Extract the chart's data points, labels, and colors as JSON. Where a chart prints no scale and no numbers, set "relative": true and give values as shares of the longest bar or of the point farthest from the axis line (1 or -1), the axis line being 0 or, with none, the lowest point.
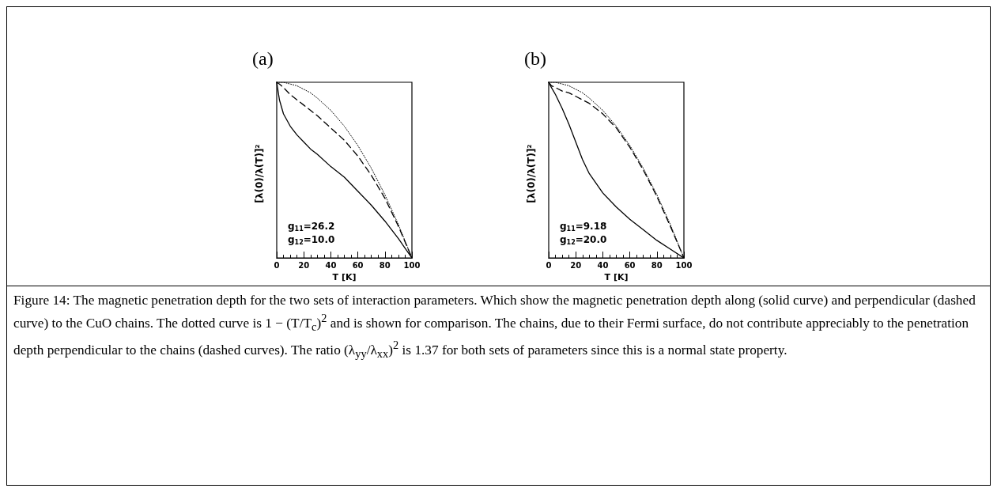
{
  "chart_data": [
    {
      "type": "line",
      "title": "(a)",
      "xlabel": "T [K]",
      "ylabel": "[λ(0)/λ(T)]²",
      "relative": true,
      "xlim": [
        0,
        100
      ],
      "xticks": [
        0,
        20,
        40,
        60,
        80,
        100
      ],
      "marker": "none",
      "grid": false,
      "x": [
        0,
        2,
        5,
        10,
        15,
        20,
        25,
        30,
        40,
        50,
        60,
        70,
        80,
        90,
        100
      ],
      "series": [
        {
          "color": "#000000",
          "line_style": "solid",
          "values": [
            1,
            0.9,
            0.82,
            0.75,
            0.7,
            0.66,
            0.62,
            0.59,
            0.52,
            0.46,
            0.38,
            0.3,
            0.21,
            0.11,
            0
          ]
        },
        {
          "color": "#000000",
          "line_style": "dashed",
          "values": [
            1,
            0.99,
            0.97,
            0.93,
            0.9,
            0.87,
            0.84,
            0.81,
            0.74,
            0.67,
            0.58,
            0.47,
            0.34,
            0.18,
            0
          ]
        },
        {
          "color": "#000000",
          "line_style": "dotted",
          "values": [
            1,
            1,
            1,
            0.99,
            0.98,
            0.96,
            0.94,
            0.91,
            0.84,
            0.75,
            0.64,
            0.51,
            0.36,
            0.19,
            0
          ]
        }
      ],
      "annotations": [
        "g$_{11}$=26.2",
        "g$_{12}$=10.0"
      ]
    },
    {
      "type": "line",
      "title": "(b)",
      "xlabel": "T [K]",
      "ylabel": "[λ(0)/λ(T)]²",
      "relative": true,
      "xlim": [
        0,
        100
      ],
      "xticks": [
        0,
        20,
        40,
        60,
        80,
        100
      ],
      "marker": "none",
      "grid": false,
      "x": [
        0,
        2,
        5,
        10,
        15,
        20,
        25,
        30,
        40,
        50,
        60,
        70,
        80,
        90,
        100
      ],
      "series": [
        {
          "color": "#000000",
          "line_style": "solid",
          "values": [
            1,
            0.97,
            0.93,
            0.85,
            0.76,
            0.66,
            0.56,
            0.48,
            0.37,
            0.29,
            0.22,
            0.16,
            0.1,
            0.05,
            0
          ]
        },
        {
          "color": "#000000",
          "line_style": "dashed",
          "values": [
            1,
            0.98,
            0.97,
            0.95,
            0.94,
            0.92,
            0.9,
            0.88,
            0.82,
            0.74,
            0.63,
            0.5,
            0.35,
            0.18,
            0
          ]
        },
        {
          "color": "#000000",
          "line_style": "dotted",
          "values": [
            1,
            1,
            1,
            0.99,
            0.98,
            0.96,
            0.94,
            0.91,
            0.84,
            0.75,
            0.64,
            0.51,
            0.36,
            0.19,
            0
          ]
        }
      ],
      "annotations": [
        "g$_{11}$=9.18",
        "g$_{12}$=20.0"
      ]
    },
    {
      "type": "other",
      "annotations": [
        "Figure 14: The magnetic penetration depth for the two sets of interaction parameters. Which show the magnetic penetration depth along (solid curve) and perpendicular (dashed curve) to the CuO chains. The dotted curve is 1 − (T/T$_{c}$)$^{2}$ and is shown for comparison. The chains, due to their Fermi surface, do not contribute appreciably to the penetration depth perpendicular to the chains (dashed curves). The ratio (λ$_{yy}$/λ$_{xx}$)$^{2}$ is 1.37 for both sets of parameters since this is a normal state property."
      ]
    }
  ]
}
